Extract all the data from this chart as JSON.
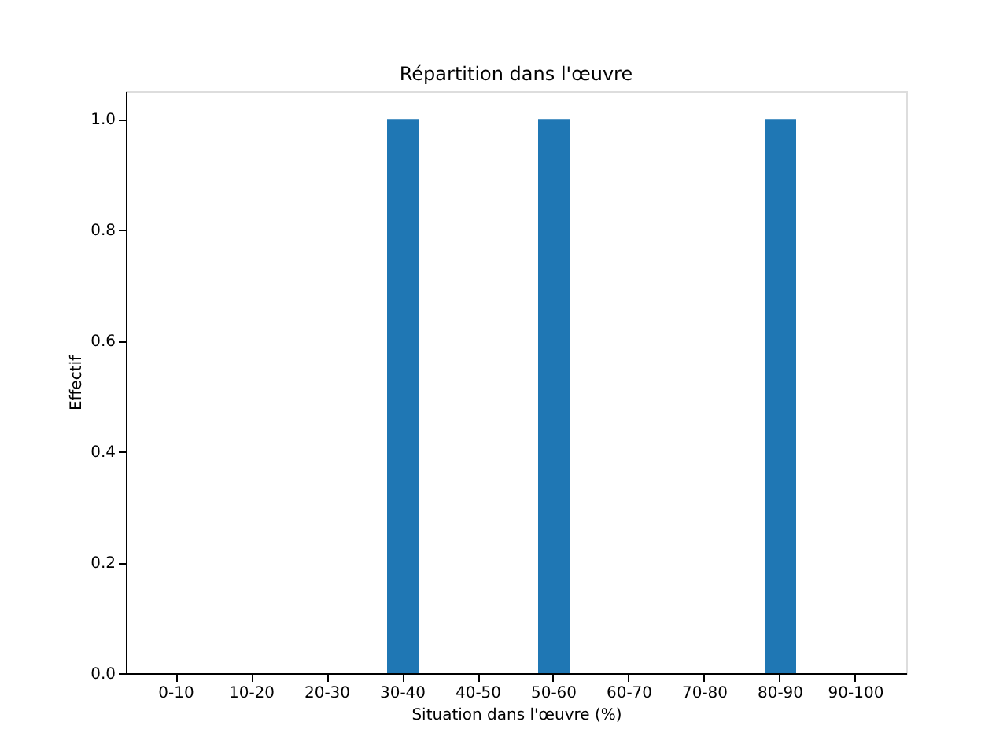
{
  "chart_data": {
    "type": "bar",
    "title": "Répartition dans l'œuvre",
    "xlabel": "Situation dans l'œuvre (%)",
    "ylabel": "Effectif",
    "categories": [
      "0-10",
      "10-20",
      "20-30",
      "30-40",
      "40-50",
      "50-60",
      "60-70",
      "70-80",
      "80-90",
      "90-100"
    ],
    "values": [
      0,
      0,
      0,
      1,
      0,
      1,
      0,
      0,
      1,
      0
    ],
    "color": "#1f77b4",
    "ylim": [
      0,
      1.05
    ],
    "yticks": [
      {
        "value": 0,
        "label": "0.0"
      },
      {
        "value": 0.2,
        "label": "0.2"
      },
      {
        "value": 0.4,
        "label": "0.4"
      },
      {
        "value": 0.6,
        "label": "0.6"
      },
      {
        "value": 0.8,
        "label": "0.8"
      },
      {
        "value": 1,
        "label": "1.0"
      }
    ],
    "grid": false
  }
}
